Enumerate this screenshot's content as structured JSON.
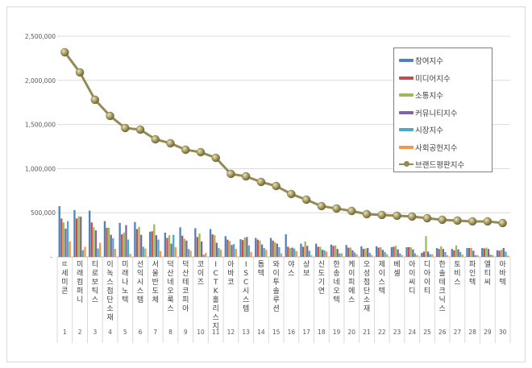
{
  "chart_data": {
    "type": "bar+line",
    "title": "",
    "xlabel": "",
    "ylabel": "",
    "ylim": [
      0,
      2500000
    ],
    "yticks": [
      "-",
      "500,000",
      "1,000,000",
      "1,500,000",
      "2,000,000",
      "2,500,000"
    ],
    "grid": true,
    "legend_position": "upper right",
    "categories": [
      "ㄸ세미콘",
      "미래컴퍼니",
      "티로보틱스",
      "이녹스첨단소재",
      "미래나노텍",
      "선익시스템",
      "서울반도체",
      "덕산네오룩스",
      "덕산테코피아",
      "코이즈",
      "ICTK홀리스지",
      "아바코",
      "ISC시스템",
      "톱텍",
      "와이투솔루션",
      "야스",
      "상보",
      "신도기연",
      "한송네오텍",
      "케이피에스",
      "오성첨단소재",
      "제이스텍",
      "베셀",
      "아이씨디",
      "디아이티",
      "한솔테크닉스",
      "토비스",
      "파인텍",
      "엘티씨",
      "아바텍"
    ],
    "ranks": [
      "1",
      "2",
      "3",
      "4",
      "5",
      "6",
      "7",
      "8",
      "9",
      "10",
      "11",
      "12",
      "13",
      "14",
      "15",
      "16",
      "17",
      "18",
      "19",
      "20",
      "21",
      "22",
      "23",
      "24",
      "25",
      "26",
      "27",
      "28",
      "29",
      "30"
    ],
    "series": [
      {
        "name": "참여지수",
        "color": "#4f81bd",
        "type": "bar",
        "values": [
          575000,
          530000,
          525000,
          405000,
          385000,
          395000,
          285000,
          275000,
          335000,
          325000,
          315000,
          235000,
          200000,
          215000,
          215000,
          255000,
          150000,
          150000,
          140000,
          135000,
          120000,
          120000,
          110000,
          110000,
          45000,
          100000,
          90000,
          100000,
          100000,
          75000
        ]
      },
      {
        "name": "미디어지수",
        "color": "#c0504d",
        "type": "bar",
        "values": [
          435000,
          435000,
          390000,
          330000,
          255000,
          315000,
          290000,
          215000,
          240000,
          225000,
          255000,
          195000,
          190000,
          195000,
          185000,
          115000,
          115000,
          115000,
          125000,
          105000,
          90000,
          105000,
          115000,
          110000,
          60000,
          90000,
          75000,
          100000,
          95000,
          70000
        ]
      },
      {
        "name": "소통지수",
        "color": "#9bbb59",
        "type": "bar",
        "values": [
          390000,
          460000,
          335000,
          330000,
          275000,
          340000,
          370000,
          245000,
          205000,
          265000,
          245000,
          180000,
          220000,
          185000,
          165000,
          100000,
          175000,
          115000,
          130000,
          105000,
          95000,
          110000,
          125000,
          110000,
          235000,
          120000,
          130000,
          100000,
          105000,
          80000
        ]
      },
      {
        "name": "커뮤니티지수",
        "color": "#8064a2",
        "type": "bar",
        "values": [
          320000,
          455000,
          300000,
          250000,
          360000,
          250000,
          245000,
          150000,
          185000,
          175000,
          160000,
          135000,
          225000,
          140000,
          150000,
          105000,
          125000,
          80000,
          90000,
          75000,
          100000,
          80000,
          85000,
          85000,
          60000,
          90000,
          85000,
          70000,
          90000,
          100000
        ]
      },
      {
        "name": "시장지수",
        "color": "#4bacc6",
        "type": "bar",
        "values": [
          405000,
          75000,
          95000,
          210000,
          195000,
          115000,
          195000,
          250000,
          90000,
          25000,
          100000,
          145000,
          130000,
          100000,
          110000,
          95000,
          70000,
          75000,
          40000,
          50000,
          45000,
          55000,
          40000,
          40000,
          30000,
          55000,
          55000,
          20000,
          25000,
          60000
        ]
      },
      {
        "name": "사회공헌지수",
        "color": "#f79646",
        "type": "bar",
        "values": [
          175000,
          115000,
          160000,
          90000,
          35000,
          95000,
          65000,
          110000,
          70000,
          45000,
          80000,
          90000,
          55000,
          80000,
          40000,
          65000,
          20000,
          60000,
          40000,
          30000,
          20000,
          30000,
          20000,
          20000,
          30000,
          20000,
          25000,
          20000,
          20000,
          15000
        ]
      },
      {
        "name": "브랜드평판지수",
        "color": "#948a54",
        "type": "line",
        "values": [
          2318000,
          2090000,
          1780000,
          1597000,
          1460000,
          1442000,
          1332000,
          1287000,
          1214000,
          1186000,
          1122000,
          940000,
          912000,
          849000,
          803000,
          712000,
          648000,
          575000,
          548000,
          520000,
          484000,
          475000,
          466000,
          457000,
          438000,
          420000,
          411000,
          402000,
          402000,
          383000
        ]
      }
    ]
  }
}
